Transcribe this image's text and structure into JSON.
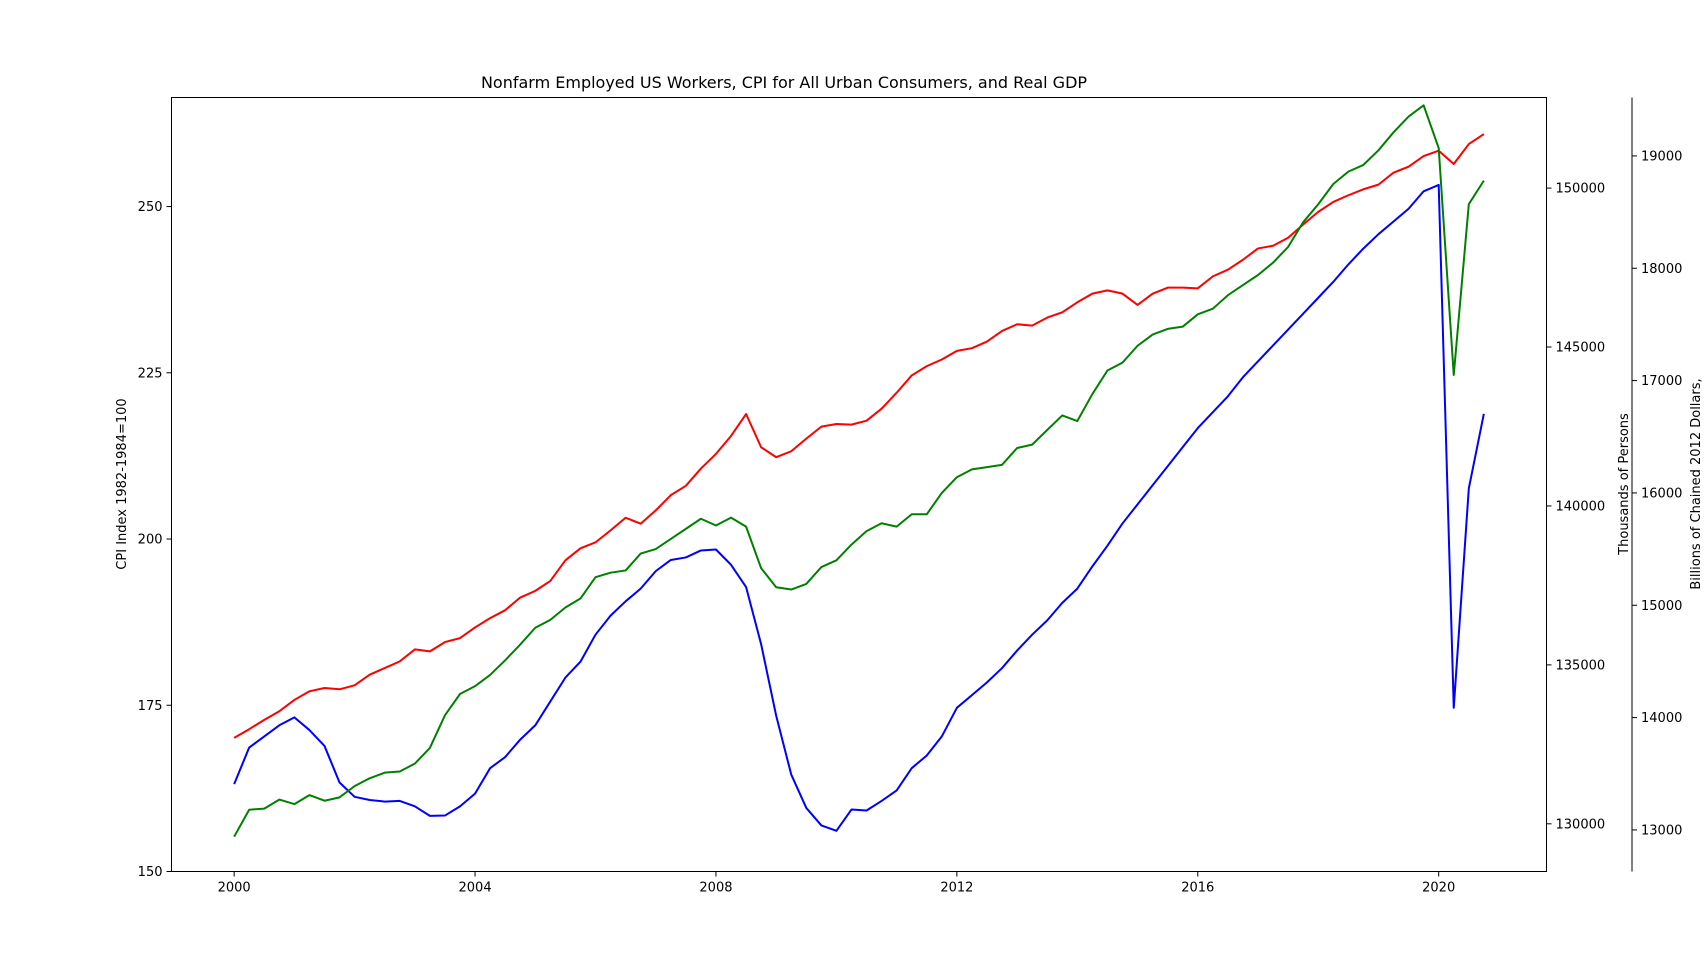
{
  "chart_data": {
    "type": "line",
    "title": "Nonfarm Employed US Workers, CPI for All Urban Consumers, and Real GDP",
    "xlabel": "",
    "x_ticks": [
      "2000",
      "2004",
      "2008",
      "2012",
      "2016",
      "2020"
    ],
    "x_tick_values": [
      2000,
      2004,
      2008,
      2012,
      2016,
      2020
    ],
    "xlim": [
      1998.96,
      2021.79
    ],
    "grid": false,
    "legend": "none",
    "axes": {
      "left": {
        "label": "CPI Index 1982-1984=100",
        "ylim": [
          150,
          266.4
        ],
        "ticks": [
          150,
          175,
          200,
          225,
          250
        ]
      },
      "right": {
        "label": "Thousands of Persons",
        "ylim": [
          128500,
          152850
        ],
        "ticks": [
          130000,
          135000,
          140000,
          145000,
          150000
        ]
      },
      "right2": {
        "label": "Billions of Chained 2012 Dollars,",
        "ylim": [
          12630,
          19520
        ],
        "ticks": [
          13000,
          14000,
          15000,
          16000,
          17000,
          18000,
          19000
        ]
      }
    },
    "x": [
      2000,
      2000.25,
      2000.5,
      2000.75,
      2001,
      2001.25,
      2001.5,
      2001.75,
      2002,
      2002.25,
      2002.5,
      2002.75,
      2003,
      2003.25,
      2003.5,
      2003.75,
      2004,
      2004.25,
      2004.5,
      2004.75,
      2005,
      2005.25,
      2005.5,
      2005.75,
      2006,
      2006.25,
      2006.5,
      2006.75,
      2007,
      2007.25,
      2007.5,
      2007.75,
      2008,
      2008.25,
      2008.5,
      2008.75,
      2009,
      2009.25,
      2009.5,
      2009.75,
      2010,
      2010.25,
      2010.5,
      2010.75,
      2011,
      2011.25,
      2011.5,
      2011.75,
      2012,
      2012.25,
      2012.5,
      2012.75,
      2013,
      2013.25,
      2013.5,
      2013.75,
      2014,
      2014.25,
      2014.5,
      2014.75,
      2015,
      2015.25,
      2015.5,
      2015.75,
      2016,
      2016.25,
      2016.5,
      2016.75,
      2017,
      2017.25,
      2017.5,
      2017.75,
      2018,
      2018.25,
      2018.5,
      2018.75,
      2019,
      2019.25,
      2019.5,
      2019.75,
      2020,
      2020.25,
      2020.5,
      2020.75
    ],
    "series": [
      {
        "axis": "left",
        "color": "#ff0000",
        "values": [
          170.1,
          171.4,
          172.8,
          174.1,
          175.8,
          177.1,
          177.6,
          177.4,
          178.0,
          179.6,
          180.6,
          181.6,
          183.4,
          183.1,
          184.5,
          185.1,
          186.7,
          188.1,
          189.3,
          191.2,
          192.2,
          193.7,
          196.8,
          198.6,
          199.5,
          201.3,
          203.2,
          202.3,
          204.3,
          206.6,
          208.0,
          210.6,
          212.8,
          215.5,
          218.8,
          213.8,
          212.3,
          213.2,
          215.1,
          216.9,
          217.3,
          217.2,
          217.8,
          219.6,
          222.0,
          224.6,
          226.0,
          227.0,
          228.3,
          228.7,
          229.7,
          231.3,
          232.3,
          232.1,
          233.3,
          234.1,
          235.6,
          236.9,
          237.4,
          236.9,
          235.2,
          236.9,
          237.8,
          237.8,
          237.7,
          239.5,
          240.5,
          242.0,
          243.7,
          244.1,
          245.3,
          247.3,
          249.2,
          250.7,
          251.7,
          252.6,
          253.3,
          255.1,
          256.0,
          257.6,
          258.4,
          256.4,
          259.4,
          260.9
        ]
      },
      {
        "axis": "right",
        "color": "#0000ff",
        "values": [
          131250,
          132400,
          132750,
          133100,
          133350,
          132950,
          132450,
          131300,
          130850,
          130750,
          130700,
          130720,
          130550,
          130250,
          130260,
          130550,
          130950,
          131750,
          132100,
          132650,
          133100,
          133850,
          134600,
          135100,
          135950,
          136550,
          137000,
          137400,
          137950,
          138300,
          138380,
          138600,
          138630,
          138150,
          137450,
          135650,
          133400,
          131550,
          130500,
          129950,
          129780,
          130450,
          130420,
          130720,
          131050,
          131750,
          132150,
          132750,
          133650,
          134050,
          134450,
          134900,
          135450,
          135950,
          136400,
          136950,
          137400,
          138100,
          138750,
          139450,
          140050,
          140650,
          141250,
          141850,
          142450,
          142950,
          143450,
          144050,
          144550,
          145050,
          145550,
          146050,
          146550,
          147050,
          147600,
          148100,
          148550,
          148950,
          149350,
          149900,
          150100,
          133650,
          140550,
          142900
        ]
      },
      {
        "axis": "right2",
        "color": "#008000",
        "values": [
          12940,
          13180,
          13190,
          13270,
          13230,
          13310,
          13260,
          13290,
          13390,
          13460,
          13510,
          13520,
          13590,
          13730,
          14020,
          14210,
          14280,
          14380,
          14510,
          14650,
          14800,
          14870,
          14980,
          15060,
          15250,
          15290,
          15310,
          15460,
          15500,
          15590,
          15680,
          15770,
          15710,
          15780,
          15700,
          15330,
          15160,
          15140,
          15190,
          15340,
          15400,
          15540,
          15660,
          15730,
          15700,
          15810,
          15810,
          16000,
          16140,
          16210,
          16230,
          16250,
          16400,
          16430,
          16560,
          16690,
          16640,
          16880,
          17090,
          17160,
          17310,
          17410,
          17460,
          17480,
          17590,
          17640,
          17760,
          17850,
          17940,
          18050,
          18190,
          18410,
          18570,
          18750,
          18860,
          18920,
          19050,
          19210,
          19350,
          19450,
          19070,
          17050,
          18570,
          18780
        ]
      }
    ]
  }
}
